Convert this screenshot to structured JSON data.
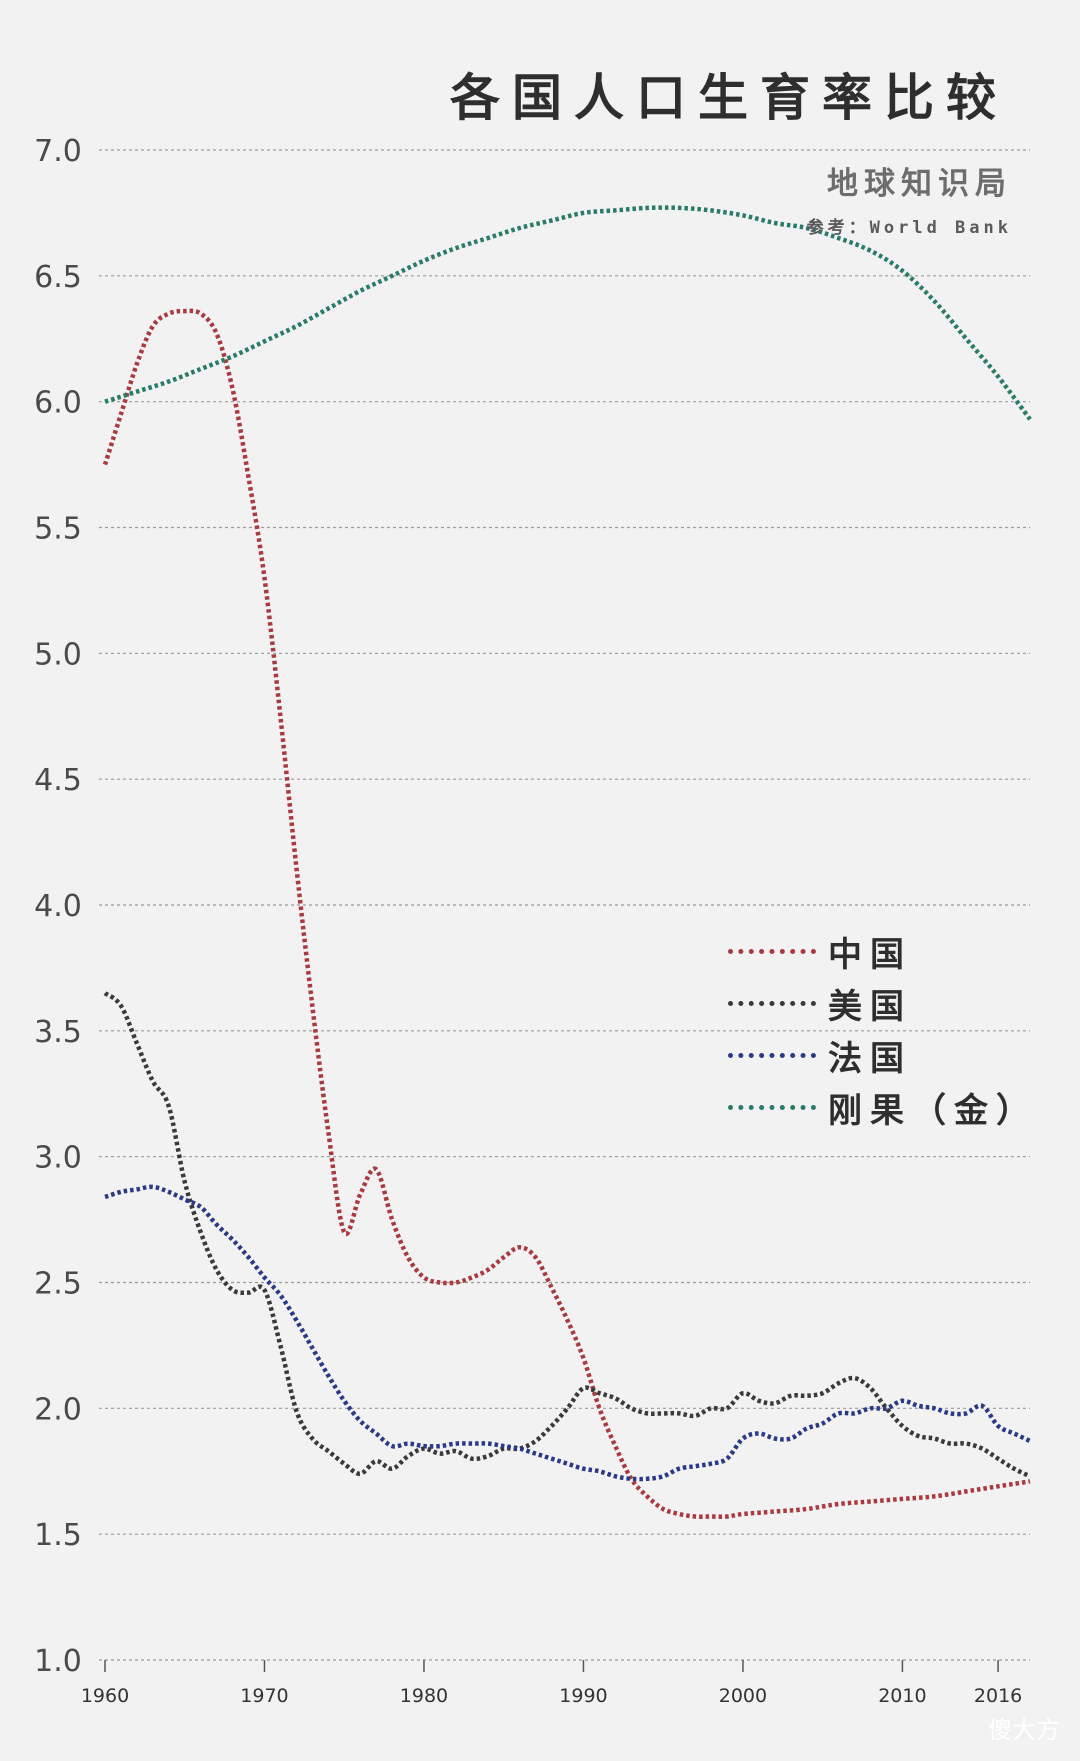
{
  "chart_data": {
    "type": "line",
    "title": "各国人口生育率比较",
    "subtitle": "地球知识局",
    "source": "参考：World Bank",
    "xlabel": "",
    "ylabel": "",
    "xlim": [
      1960,
      2018
    ],
    "ylim": [
      1.0,
      7.0
    ],
    "x_ticks": [
      "1960",
      "1970",
      "1980",
      "1990",
      "2000",
      "2010",
      "2016"
    ],
    "y_ticks": [
      "1.0",
      "1.5",
      "2.0",
      "2.5",
      "3.0",
      "3.5",
      "4.0",
      "4.5",
      "5.0",
      "5.5",
      "6.0",
      "6.5",
      "7.0"
    ],
    "grid": true,
    "legend_position": "right-middle",
    "series": [
      {
        "name": "中国",
        "color": "#a83a40",
        "x": [
          1960,
          1961,
          1962,
          1963,
          1964,
          1965,
          1966,
          1967,
          1968,
          1969,
          1970,
          1971,
          1972,
          1973,
          1974,
          1975,
          1976,
          1977,
          1978,
          1979,
          1980,
          1981,
          1982,
          1983,
          1984,
          1985,
          1986,
          1987,
          1988,
          1989,
          1990,
          1991,
          1992,
          1993,
          1994,
          1995,
          1996,
          1997,
          1998,
          1999,
          2000,
          2002,
          2004,
          2006,
          2008,
          2010,
          2012,
          2014,
          2016,
          2018
        ],
        "y": [
          5.75,
          5.95,
          6.15,
          6.3,
          6.35,
          6.36,
          6.35,
          6.27,
          6.05,
          5.7,
          5.3,
          4.75,
          4.15,
          3.6,
          3.1,
          2.7,
          2.85,
          2.95,
          2.75,
          2.6,
          2.52,
          2.5,
          2.5,
          2.52,
          2.55,
          2.6,
          2.64,
          2.6,
          2.48,
          2.35,
          2.2,
          2.0,
          1.85,
          1.72,
          1.65,
          1.6,
          1.58,
          1.57,
          1.57,
          1.57,
          1.58,
          1.59,
          1.6,
          1.62,
          1.63,
          1.64,
          1.65,
          1.67,
          1.69,
          1.71
        ]
      },
      {
        "name": "美国",
        "color": "#3a3a3a",
        "x": [
          1960,
          1961,
          1962,
          1963,
          1964,
          1965,
          1966,
          1967,
          1968,
          1969,
          1970,
          1971,
          1972,
          1973,
          1974,
          1975,
          1976,
          1977,
          1978,
          1979,
          1980,
          1981,
          1982,
          1983,
          1984,
          1985,
          1986,
          1987,
          1988,
          1989,
          1990,
          1991,
          1992,
          1993,
          1994,
          1995,
          1996,
          1997,
          1998,
          1999,
          2000,
          2001,
          2002,
          2003,
          2004,
          2005,
          2006,
          2007,
          2008,
          2009,
          2010,
          2011,
          2012,
          2013,
          2014,
          2015,
          2016,
          2017,
          2018
        ],
        "y": [
          3.65,
          3.6,
          3.45,
          3.3,
          3.2,
          2.9,
          2.7,
          2.55,
          2.47,
          2.46,
          2.47,
          2.25,
          1.99,
          1.88,
          1.83,
          1.78,
          1.74,
          1.79,
          1.76,
          1.81,
          1.84,
          1.82,
          1.83,
          1.8,
          1.81,
          1.84,
          1.84,
          1.87,
          1.93,
          2.0,
          2.08,
          2.06,
          2.04,
          2.0,
          1.98,
          1.98,
          1.98,
          1.97,
          2.0,
          2.0,
          2.06,
          2.03,
          2.02,
          2.05,
          2.05,
          2.06,
          2.1,
          2.12,
          2.08,
          2.0,
          1.93,
          1.89,
          1.88,
          1.86,
          1.86,
          1.84,
          1.8,
          1.76,
          1.73
        ]
      },
      {
        "name": "法国",
        "color": "#2a3a86",
        "x": [
          1960,
          1961,
          1962,
          1963,
          1964,
          1965,
          1966,
          1967,
          1968,
          1969,
          1970,
          1971,
          1972,
          1973,
          1974,
          1975,
          1976,
          1977,
          1978,
          1979,
          1980,
          1981,
          1982,
          1983,
          1984,
          1985,
          1986,
          1987,
          1988,
          1989,
          1990,
          1991,
          1992,
          1993,
          1994,
          1995,
          1996,
          1997,
          1998,
          1999,
          2000,
          2001,
          2002,
          2003,
          2004,
          2005,
          2006,
          2007,
          2008,
          2009,
          2010,
          2011,
          2012,
          2013,
          2014,
          2015,
          2016,
          2017,
          2018
        ],
        "y": [
          2.84,
          2.86,
          2.87,
          2.88,
          2.86,
          2.83,
          2.8,
          2.73,
          2.67,
          2.6,
          2.52,
          2.45,
          2.35,
          2.24,
          2.13,
          2.03,
          1.95,
          1.9,
          1.85,
          1.86,
          1.85,
          1.85,
          1.86,
          1.86,
          1.86,
          1.85,
          1.84,
          1.82,
          1.8,
          1.78,
          1.76,
          1.75,
          1.73,
          1.72,
          1.72,
          1.73,
          1.76,
          1.77,
          1.78,
          1.8,
          1.88,
          1.9,
          1.88,
          1.88,
          1.92,
          1.94,
          1.98,
          1.98,
          2.0,
          2.0,
          2.03,
          2.01,
          2.0,
          1.98,
          1.98,
          2.01,
          1.93,
          1.9,
          1.87
        ]
      },
      {
        "name": "刚果（金）",
        "color": "#2a7c68",
        "x": [
          1960,
          1962,
          1964,
          1966,
          1968,
          1970,
          1972,
          1974,
          1976,
          1978,
          1980,
          1982,
          1984,
          1986,
          1988,
          1990,
          1992,
          1994,
          1996,
          1998,
          2000,
          2002,
          2004,
          2006,
          2008,
          2010,
          2012,
          2014,
          2016,
          2018
        ],
        "y": [
          6.0,
          6.04,
          6.08,
          6.13,
          6.18,
          6.24,
          6.3,
          6.37,
          6.44,
          6.5,
          6.56,
          6.61,
          6.65,
          6.69,
          6.72,
          6.75,
          6.76,
          6.77,
          6.77,
          6.76,
          6.74,
          6.71,
          6.69,
          6.65,
          6.6,
          6.52,
          6.4,
          6.25,
          6.1,
          5.93
        ]
      }
    ]
  },
  "watermark": "傻大方"
}
